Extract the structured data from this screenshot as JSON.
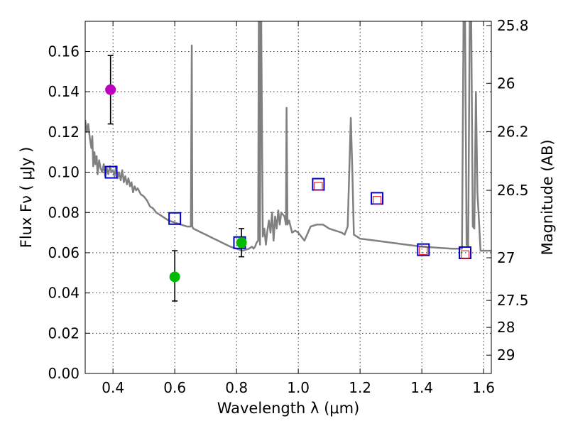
{
  "chart_data": {
    "type": "scatter",
    "xlabel": "Wavelength  λ (μm)",
    "ylabel": "Flux  Fν  ( μJy )",
    "y2label": "Magnitude (AB)",
    "xlim": [
      0.31,
      1.625
    ],
    "ylim": [
      0.0,
      0.175
    ],
    "grid": true,
    "x_ticks": [
      0.4,
      0.6,
      0.8,
      1.0,
      1.2,
      1.4,
      1.6
    ],
    "x_tick_labels": [
      "0.4",
      "0.6",
      "0.8",
      "1.0",
      "1.2",
      "1.4",
      "1.6"
    ],
    "y_ticks": [
      0.0,
      0.02,
      0.04,
      0.06,
      0.08,
      0.1,
      0.12,
      0.14,
      0.16
    ],
    "y_tick_labels": [
      "0.00",
      "0.02",
      "0.04",
      "0.06",
      "0.08",
      "0.10",
      "0.12",
      "0.14",
      "0.16"
    ],
    "y2_ticks": [
      {
        "flux": 0.1729,
        "label": "25.8"
      },
      {
        "flux": 0.1442,
        "label": "26"
      },
      {
        "flux": 0.1202,
        "label": "26.2"
      },
      {
        "flux": 0.091,
        "label": "26.5"
      },
      {
        "flux": 0.0575,
        "label": "27"
      },
      {
        "flux": 0.0363,
        "label": "27.5"
      },
      {
        "flux": 0.0229,
        "label": "28"
      },
      {
        "flux": 0.0091,
        "label": "29"
      }
    ],
    "colors": {
      "model_line": "#808080",
      "model_square": "#0000cc",
      "observed_square": "#dd2222",
      "magenta_point": "#c000c0",
      "green_point": "#00bb00",
      "errorbar": "#000000"
    },
    "series": [
      {
        "name": "Model SED",
        "type": "line",
        "x": [
          0.31,
          0.315,
          0.32,
          0.325,
          0.33,
          0.333,
          0.336,
          0.34,
          0.343,
          0.347,
          0.35,
          0.355,
          0.36,
          0.365,
          0.37,
          0.375,
          0.38,
          0.385,
          0.39,
          0.395,
          0.4,
          0.405,
          0.41,
          0.415,
          0.42,
          0.425,
          0.43,
          0.435,
          0.44,
          0.445,
          0.45,
          0.455,
          0.46,
          0.465,
          0.47,
          0.475,
          0.48,
          0.49,
          0.5,
          0.51,
          0.52,
          0.53,
          0.54,
          0.55,
          0.56,
          0.57,
          0.58,
          0.59,
          0.6,
          0.62,
          0.64,
          0.652,
          0.655,
          0.657,
          0.66,
          0.68,
          0.7,
          0.72,
          0.74,
          0.76,
          0.78,
          0.8,
          0.82,
          0.84,
          0.85,
          0.855,
          0.86,
          0.865,
          0.87,
          0.872,
          0.874,
          0.876,
          0.878,
          0.88,
          0.885,
          0.89,
          0.895,
          0.9,
          0.905,
          0.91,
          0.915,
          0.92,
          0.925,
          0.93,
          0.935,
          0.94,
          0.945,
          0.95,
          0.955,
          0.96,
          0.962,
          0.965,
          0.97,
          0.98,
          0.99,
          1.0,
          1.02,
          1.04,
          1.06,
          1.08,
          1.1,
          1.12,
          1.14,
          1.15,
          1.16,
          1.17,
          1.175,
          1.18,
          1.19,
          1.2,
          1.25,
          1.3,
          1.35,
          1.4,
          1.45,
          1.5,
          1.52,
          1.53,
          1.535,
          1.54,
          1.545,
          1.55,
          1.555,
          1.56,
          1.565,
          1.57,
          1.575,
          1.58,
          1.585,
          1.59,
          1.6,
          1.625
        ],
        "y": [
          0.126,
          0.12,
          0.124,
          0.117,
          0.112,
          0.118,
          0.103,
          0.11,
          0.104,
          0.108,
          0.099,
          0.106,
          0.102,
          0.1,
          0.104,
          0.098,
          0.102,
          0.099,
          0.103,
          0.1,
          0.101,
          0.098,
          0.103,
          0.097,
          0.1,
          0.096,
          0.101,
          0.095,
          0.098,
          0.094,
          0.097,
          0.093,
          0.095,
          0.09,
          0.093,
          0.091,
          0.092,
          0.089,
          0.088,
          0.086,
          0.083,
          0.082,
          0.08,
          0.079,
          0.078,
          0.077,
          0.076,
          0.0755,
          0.075,
          0.074,
          0.073,
          0.073,
          0.163,
          0.073,
          0.072,
          0.0705,
          0.069,
          0.0675,
          0.066,
          0.0645,
          0.063,
          0.062,
          0.061,
          0.062,
          0.063,
          0.062,
          0.063,
          0.065,
          0.066,
          0.176,
          0.176,
          0.064,
          0.176,
          0.176,
          0.068,
          0.072,
          0.064,
          0.071,
          0.076,
          0.07,
          0.08,
          0.066,
          0.078,
          0.072,
          0.081,
          0.074,
          0.08,
          0.079,
          0.078,
          0.074,
          0.132,
          0.074,
          0.076,
          0.07,
          0.071,
          0.07,
          0.066,
          0.073,
          0.074,
          0.074,
          0.072,
          0.071,
          0.07,
          0.069,
          0.073,
          0.127,
          0.1,
          0.069,
          0.068,
          0.067,
          0.066,
          0.065,
          0.064,
          0.063,
          0.0625,
          0.062,
          0.062,
          0.062,
          0.176,
          0.176,
          0.064,
          0.063,
          0.176,
          0.176,
          0.073,
          0.072,
          0.14,
          0.09,
          0.076,
          0.061,
          0.061,
          0.061
        ]
      },
      {
        "name": "Model photometry",
        "type": "scatter",
        "marker": "open-square",
        "x": [
          0.394,
          0.6,
          0.81,
          1.065,
          1.255,
          1.405,
          1.54
        ],
        "y": [
          0.1,
          0.077,
          0.065,
          0.094,
          0.087,
          0.0615,
          0.06
        ]
      },
      {
        "name": "Observed photometry (red)",
        "type": "scatter",
        "marker": "open-square",
        "x": [
          1.065,
          1.255,
          1.405,
          1.54
        ],
        "y": [
          0.093,
          0.086,
          0.061,
          0.059
        ]
      },
      {
        "name": "Observed photometry (magenta)",
        "type": "scatter",
        "marker": "circle",
        "x": [
          0.392
        ],
        "y": [
          0.141
        ],
        "yerr_low": [
          0.124
        ],
        "yerr_high": [
          0.158
        ]
      },
      {
        "name": "Observed photometry (green)",
        "type": "scatter",
        "marker": "circle",
        "x": [
          0.6,
          0.816
        ],
        "y": [
          0.048,
          0.065
        ],
        "yerr_low": [
          0.036,
          0.058
        ],
        "yerr_high": [
          0.061,
          0.072
        ]
      }
    ]
  }
}
